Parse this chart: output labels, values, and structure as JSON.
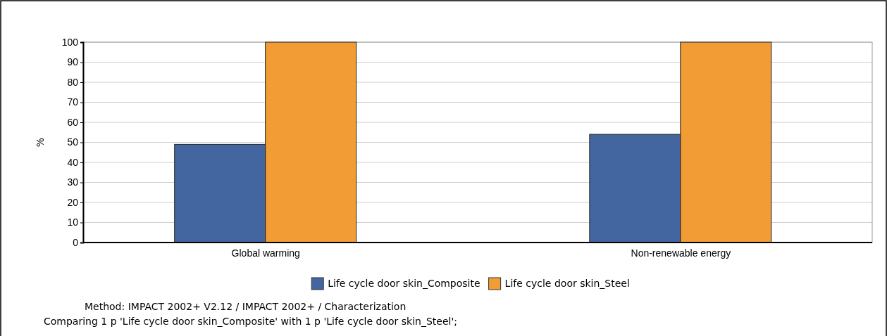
{
  "chart_data": {
    "type": "bar",
    "ylabel": "%",
    "categories": [
      "Global warming",
      "Non-renewable energy"
    ],
    "series": [
      {
        "name": "Life cycle door skin_Composite",
        "color": "#4466a0",
        "values": [
          49,
          54
        ]
      },
      {
        "name": "Life cycle door skin_Steel",
        "color": "#f29c36",
        "values": [
          100,
          100
        ]
      }
    ],
    "ylim": [
      0,
      100
    ],
    "yticks": [
      0,
      10,
      20,
      30,
      40,
      50,
      60,
      70,
      80,
      90,
      100
    ],
    "grid": true,
    "legend": "bottom",
    "annotations": [
      "Method: IMPACT 2002+ V2.12 / IMPACT 2002+ / Characterization",
      "Comparing 1 p 'Life cycle door skin_Composite' with 1 p 'Life cycle door skin_Steel';"
    ]
  }
}
